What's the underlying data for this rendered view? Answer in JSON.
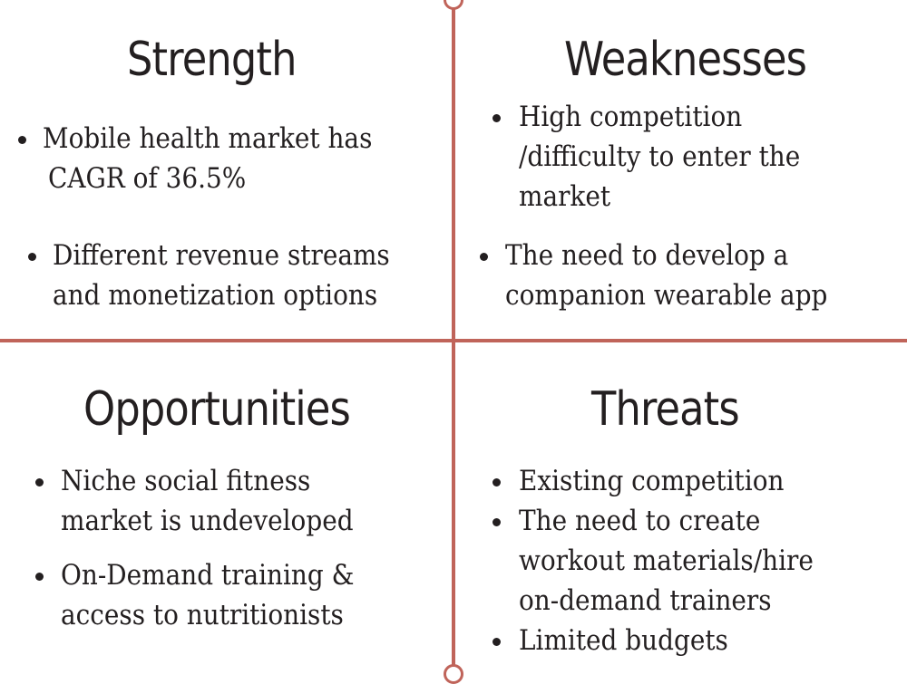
{
  "colors": {
    "divider": "#c0645a",
    "text": "#231f20",
    "background": "#ffffff"
  },
  "quadrants": {
    "strength": {
      "title": "Strength",
      "items": [
        {
          "lines": [
            "Mobile health market has",
            "CAGR of 36.5%"
          ]
        },
        {
          "lines": [
            "Different revenue streams",
            "and monetization options"
          ]
        }
      ]
    },
    "weaknesses": {
      "title": "Weaknesses",
      "items": [
        {
          "lines": [
            "High competition",
            "/difficulty to enter the",
            "market"
          ]
        },
        {
          "lines": [
            "The need to develop a",
            "companion wearable app"
          ]
        }
      ]
    },
    "opportunities": {
      "title": "Opportunities",
      "items": [
        {
          "lines": [
            "Niche social fitness",
            "market is undeveloped"
          ]
        },
        {
          "lines": [
            "On-Demand training &",
            "access to nutritionists"
          ]
        }
      ]
    },
    "threats": {
      "title": "Threats",
      "items": [
        {
          "lines": [
            "Existing competition"
          ]
        },
        {
          "lines": [
            "The need to create",
            "workout materials/hire",
            "on-demand trainers"
          ]
        },
        {
          "lines": [
            "Limited budgets"
          ]
        }
      ]
    }
  }
}
